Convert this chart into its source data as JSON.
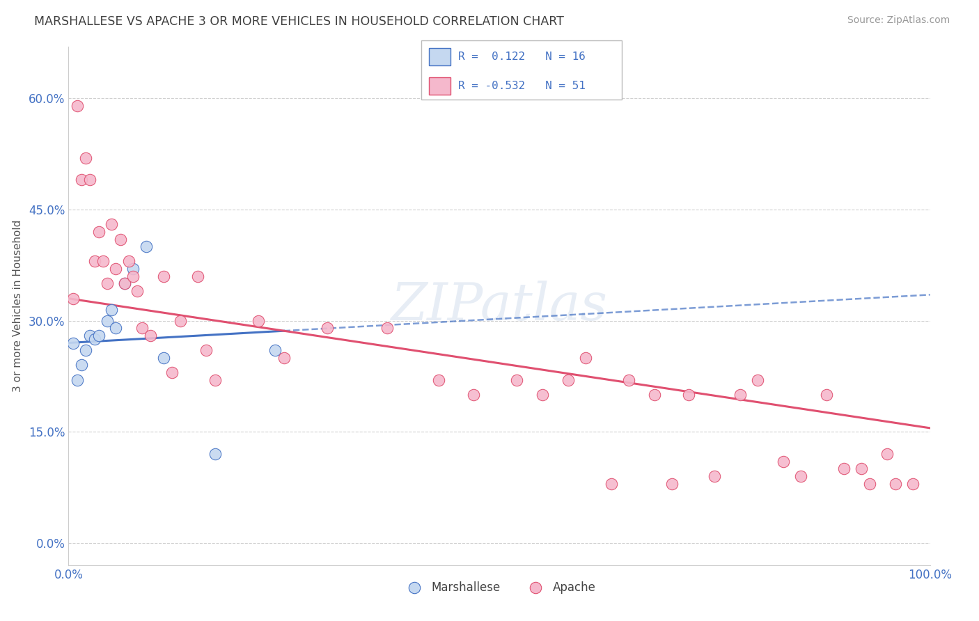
{
  "title": "MARSHALLESE VS APACHE 3 OR MORE VEHICLES IN HOUSEHOLD CORRELATION CHART",
  "source": "Source: ZipAtlas.com",
  "ylabel": "3 or more Vehicles in Household",
  "xlim": [
    0.0,
    100.0
  ],
  "ylim": [
    -3.0,
    67.0
  ],
  "yticks": [
    0.0,
    15.0,
    30.0,
    45.0,
    60.0
  ],
  "ytick_labels": [
    "0.0%",
    "15.0%",
    "30.0%",
    "45.0%",
    "60.0%"
  ],
  "background_color": "#ffffff",
  "grid_color": "#d0d0d0",
  "watermark": "ZIPatlas",
  "legend_r1": "R =  0.122",
  "legend_n1": "N = 16",
  "legend_r2": "R = -0.532",
  "legend_n2": "N = 51",
  "marshallese_color": "#c5d8f0",
  "apache_color": "#f5b8cc",
  "marshallese_line_color": "#4472c4",
  "apache_line_color": "#e05070",
  "title_color": "#404040",
  "source_color": "#999999",
  "axis_label_color": "#4472c4",
  "marshallese_x": [
    0.5,
    1.0,
    1.5,
    2.0,
    2.5,
    3.0,
    3.5,
    4.5,
    5.0,
    5.5,
    6.5,
    7.5,
    9.0,
    11.0,
    17.0,
    24.0
  ],
  "marshallese_y": [
    27.0,
    22.0,
    24.0,
    26.0,
    28.0,
    27.5,
    28.0,
    30.0,
    31.5,
    29.0,
    35.0,
    37.0,
    40.0,
    25.0,
    12.0,
    26.0
  ],
  "apache_x": [
    0.5,
    1.0,
    1.5,
    2.0,
    2.5,
    3.0,
    3.5,
    4.0,
    4.5,
    5.0,
    5.5,
    6.0,
    6.5,
    7.0,
    7.5,
    8.0,
    8.5,
    9.5,
    11.0,
    12.0,
    13.0,
    15.0,
    16.0,
    17.0,
    22.0,
    25.0,
    30.0,
    37.0,
    43.0,
    47.0,
    52.0,
    55.0,
    58.0,
    60.0,
    63.0,
    65.0,
    68.0,
    70.0,
    72.0,
    75.0,
    78.0,
    80.0,
    83.0,
    85.0,
    88.0,
    90.0,
    92.0,
    93.0,
    95.0,
    96.0,
    98.0
  ],
  "apache_y": [
    33.0,
    59.0,
    49.0,
    52.0,
    49.0,
    38.0,
    42.0,
    38.0,
    35.0,
    43.0,
    37.0,
    41.0,
    35.0,
    38.0,
    36.0,
    34.0,
    29.0,
    28.0,
    36.0,
    23.0,
    30.0,
    36.0,
    26.0,
    22.0,
    30.0,
    25.0,
    29.0,
    29.0,
    22.0,
    20.0,
    22.0,
    20.0,
    22.0,
    25.0,
    8.0,
    22.0,
    20.0,
    8.0,
    20.0,
    9.0,
    20.0,
    22.0,
    11.0,
    9.0,
    20.0,
    10.0,
    10.0,
    8.0,
    12.0,
    8.0,
    8.0
  ],
  "marsh_line_start_y": 27.0,
  "marsh_line_end_y": 33.5,
  "apache_line_start_y": 33.0,
  "apache_line_end_y": 15.5
}
